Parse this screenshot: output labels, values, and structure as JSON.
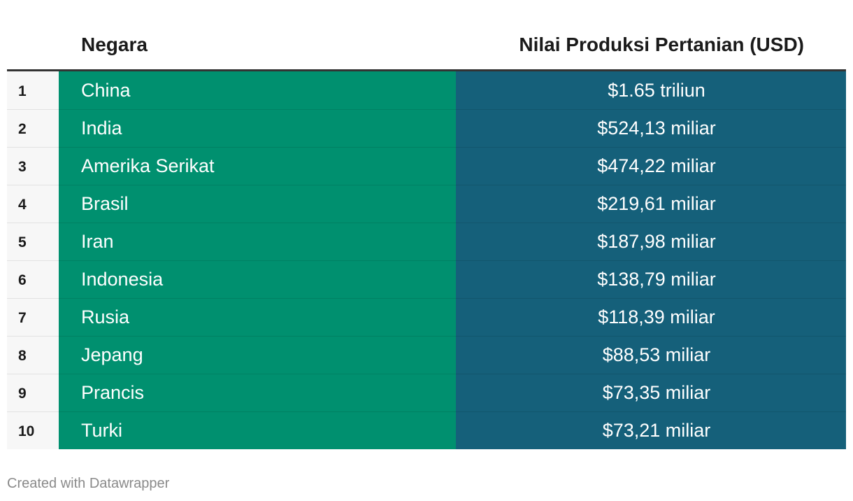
{
  "chart_data": {
    "type": "table",
    "columns": [
      "Negara",
      "Nilai Produksi Pertanian (USD)"
    ],
    "rows": [
      {
        "rank": "1",
        "country": "China",
        "value": "$1.65 triliun"
      },
      {
        "rank": "2",
        "country": "India",
        "value": "$524,13 miliar"
      },
      {
        "rank": "3",
        "country": "Amerika Serikat",
        "value": "$474,22 miliar"
      },
      {
        "rank": "4",
        "country": "Brasil",
        "value": "$219,61 miliar"
      },
      {
        "rank": "5",
        "country": "Iran",
        "value": "$187,98 miliar"
      },
      {
        "rank": "6",
        "country": "Indonesia",
        "value": "$138,79 miliar"
      },
      {
        "rank": "7",
        "country": "Rusia",
        "value": "$118,39 miliar"
      },
      {
        "rank": "8",
        "country": "Jepang",
        "value": "$88,53 miliar"
      },
      {
        "rank": "9",
        "country": "Prancis",
        "value": "$73,35 miliar"
      },
      {
        "rank": "10",
        "country": "Turki",
        "value": "$73,21 miliar"
      }
    ],
    "colors": {
      "country_column": "#00906f",
      "value_column": "#15607a",
      "rank_column": "#f7f7f7",
      "header_rule": "#333333"
    }
  },
  "footer": {
    "credit": "Created with Datawrapper"
  }
}
